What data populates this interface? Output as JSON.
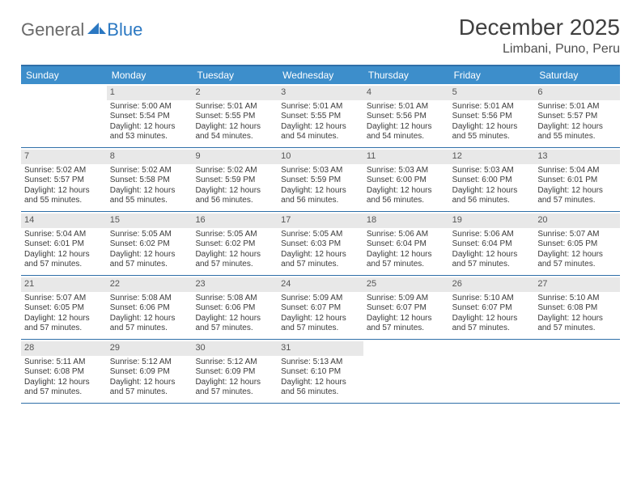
{
  "logo": {
    "word1": "General",
    "word2": "Blue"
  },
  "title": "December 2025",
  "location": "Limbani, Puno, Peru",
  "colors": {
    "header_bg": "#3d8ecb",
    "header_text": "#ffffff",
    "rule": "#2f6fa8",
    "daynum_bg": "#e8e8e8",
    "body_text": "#3b3b3b",
    "logo_gray": "#6a6a6a",
    "logo_blue": "#2b78c2"
  },
  "weekdays": [
    "Sunday",
    "Monday",
    "Tuesday",
    "Wednesday",
    "Thursday",
    "Friday",
    "Saturday"
  ],
  "weeks": [
    [
      {
        "day": null
      },
      {
        "day": 1,
        "sunrise": "5:00 AM",
        "sunset": "5:54 PM",
        "daylight": "12 hours and 53 minutes."
      },
      {
        "day": 2,
        "sunrise": "5:01 AM",
        "sunset": "5:55 PM",
        "daylight": "12 hours and 54 minutes."
      },
      {
        "day": 3,
        "sunrise": "5:01 AM",
        "sunset": "5:55 PM",
        "daylight": "12 hours and 54 minutes."
      },
      {
        "day": 4,
        "sunrise": "5:01 AM",
        "sunset": "5:56 PM",
        "daylight": "12 hours and 54 minutes."
      },
      {
        "day": 5,
        "sunrise": "5:01 AM",
        "sunset": "5:56 PM",
        "daylight": "12 hours and 55 minutes."
      },
      {
        "day": 6,
        "sunrise": "5:01 AM",
        "sunset": "5:57 PM",
        "daylight": "12 hours and 55 minutes."
      }
    ],
    [
      {
        "day": 7,
        "sunrise": "5:02 AM",
        "sunset": "5:57 PM",
        "daylight": "12 hours and 55 minutes."
      },
      {
        "day": 8,
        "sunrise": "5:02 AM",
        "sunset": "5:58 PM",
        "daylight": "12 hours and 55 minutes."
      },
      {
        "day": 9,
        "sunrise": "5:02 AM",
        "sunset": "5:59 PM",
        "daylight": "12 hours and 56 minutes."
      },
      {
        "day": 10,
        "sunrise": "5:03 AM",
        "sunset": "5:59 PM",
        "daylight": "12 hours and 56 minutes."
      },
      {
        "day": 11,
        "sunrise": "5:03 AM",
        "sunset": "6:00 PM",
        "daylight": "12 hours and 56 minutes."
      },
      {
        "day": 12,
        "sunrise": "5:03 AM",
        "sunset": "6:00 PM",
        "daylight": "12 hours and 56 minutes."
      },
      {
        "day": 13,
        "sunrise": "5:04 AM",
        "sunset": "6:01 PM",
        "daylight": "12 hours and 57 minutes."
      }
    ],
    [
      {
        "day": 14,
        "sunrise": "5:04 AM",
        "sunset": "6:01 PM",
        "daylight": "12 hours and 57 minutes."
      },
      {
        "day": 15,
        "sunrise": "5:05 AM",
        "sunset": "6:02 PM",
        "daylight": "12 hours and 57 minutes."
      },
      {
        "day": 16,
        "sunrise": "5:05 AM",
        "sunset": "6:02 PM",
        "daylight": "12 hours and 57 minutes."
      },
      {
        "day": 17,
        "sunrise": "5:05 AM",
        "sunset": "6:03 PM",
        "daylight": "12 hours and 57 minutes."
      },
      {
        "day": 18,
        "sunrise": "5:06 AM",
        "sunset": "6:04 PM",
        "daylight": "12 hours and 57 minutes."
      },
      {
        "day": 19,
        "sunrise": "5:06 AM",
        "sunset": "6:04 PM",
        "daylight": "12 hours and 57 minutes."
      },
      {
        "day": 20,
        "sunrise": "5:07 AM",
        "sunset": "6:05 PM",
        "daylight": "12 hours and 57 minutes."
      }
    ],
    [
      {
        "day": 21,
        "sunrise": "5:07 AM",
        "sunset": "6:05 PM",
        "daylight": "12 hours and 57 minutes."
      },
      {
        "day": 22,
        "sunrise": "5:08 AM",
        "sunset": "6:06 PM",
        "daylight": "12 hours and 57 minutes."
      },
      {
        "day": 23,
        "sunrise": "5:08 AM",
        "sunset": "6:06 PM",
        "daylight": "12 hours and 57 minutes."
      },
      {
        "day": 24,
        "sunrise": "5:09 AM",
        "sunset": "6:07 PM",
        "daylight": "12 hours and 57 minutes."
      },
      {
        "day": 25,
        "sunrise": "5:09 AM",
        "sunset": "6:07 PM",
        "daylight": "12 hours and 57 minutes."
      },
      {
        "day": 26,
        "sunrise": "5:10 AM",
        "sunset": "6:07 PM",
        "daylight": "12 hours and 57 minutes."
      },
      {
        "day": 27,
        "sunrise": "5:10 AM",
        "sunset": "6:08 PM",
        "daylight": "12 hours and 57 minutes."
      }
    ],
    [
      {
        "day": 28,
        "sunrise": "5:11 AM",
        "sunset": "6:08 PM",
        "daylight": "12 hours and 57 minutes."
      },
      {
        "day": 29,
        "sunrise": "5:12 AM",
        "sunset": "6:09 PM",
        "daylight": "12 hours and 57 minutes."
      },
      {
        "day": 30,
        "sunrise": "5:12 AM",
        "sunset": "6:09 PM",
        "daylight": "12 hours and 57 minutes."
      },
      {
        "day": 31,
        "sunrise": "5:13 AM",
        "sunset": "6:10 PM",
        "daylight": "12 hours and 56 minutes."
      },
      {
        "day": null
      },
      {
        "day": null
      },
      {
        "day": null
      }
    ]
  ],
  "labels": {
    "sunrise": "Sunrise: ",
    "sunset": "Sunset: ",
    "daylight": "Daylight: "
  }
}
